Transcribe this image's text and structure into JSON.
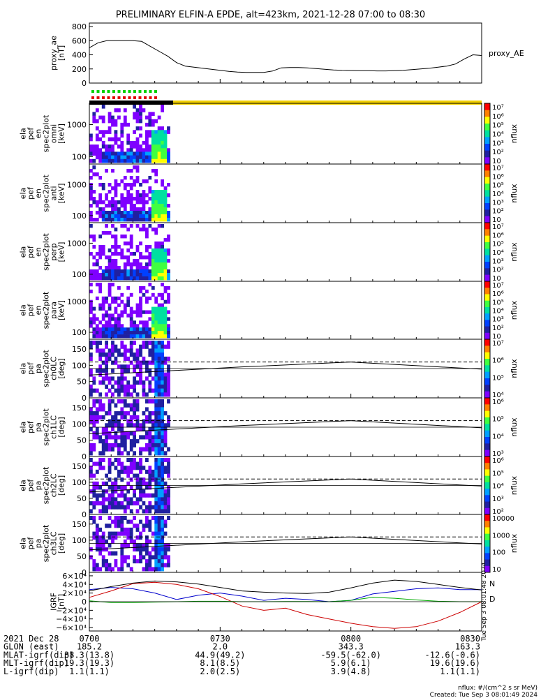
{
  "title": "PRELIMINARY ELFIN-A EPDE, alt=423km, 2021-12-28 07:00 to 08:30",
  "colors": {
    "ae_line": "#000000",
    "bar_black": "#000000",
    "bar_yellow": "#f2d000",
    "flag_green": "#00d000",
    "flag_red": "#e00000",
    "N": "#0000cc",
    "D": "#cc0000",
    "H": "#000000",
    "Z": "#00aa00"
  },
  "time_axis": {
    "start": "07:00",
    "end": "08:30",
    "minutes": 90
  },
  "panels": [
    {
      "id": "ae",
      "ylabel_lines": [
        "proxy_ae",
        "[nT]"
      ],
      "yticks": [
        "800",
        "600",
        "400",
        "200",
        "0"
      ],
      "ytick_values": [
        800,
        600,
        400,
        200,
        0
      ],
      "ylim": [
        0,
        850
      ],
      "legend": "proxy_AE"
    },
    {
      "id": "omni",
      "ylabel_lines": [
        "ela",
        "pef",
        "en",
        "spec2plot",
        "omni",
        "[keV]"
      ],
      "yticks": [
        "1000",
        "100"
      ],
      "cbar_label": "nflux",
      "cbar_ticks": [
        "10⁷",
        "10⁶",
        "10⁵",
        "10⁴",
        "10³",
        "10²",
        "10"
      ]
    },
    {
      "id": "anti",
      "ylabel_lines": [
        "ela",
        "pef",
        "en",
        "spec2plot",
        "anti",
        "[keV]"
      ],
      "yticks": [
        "1000",
        "100"
      ],
      "cbar_label": "nflux",
      "cbar_ticks": [
        "10⁷",
        "10⁶",
        "10⁵",
        "10⁴",
        "10³",
        "10²",
        "10"
      ]
    },
    {
      "id": "perp",
      "ylabel_lines": [
        "ela",
        "pef",
        "en",
        "spec2plot",
        "perp",
        "[keV]"
      ],
      "yticks": [
        "1000",
        "100"
      ],
      "cbar_label": "nflux",
      "cbar_ticks": [
        "10⁷",
        "10⁶",
        "10⁵",
        "10⁴",
        "10³",
        "10²",
        "10"
      ]
    },
    {
      "id": "para",
      "ylabel_lines": [
        "ela",
        "pef",
        "en",
        "spec2plot",
        "para",
        "[keV]"
      ],
      "yticks": [
        "1000",
        "100"
      ],
      "cbar_label": "nflux",
      "cbar_ticks": [
        "10⁷",
        "10⁶",
        "10⁵",
        "10⁴",
        "10³",
        "10²",
        "10"
      ]
    },
    {
      "id": "ch0",
      "ylabel_lines": [
        "ela",
        "pef",
        "pa",
        "spec2plot",
        "ch0LC",
        "[deg]"
      ],
      "yticks": [
        "150",
        "100",
        "50",
        "0"
      ],
      "cbar_label": "nflux",
      "cbar_ticks": [
        "10⁷",
        "10⁶",
        "10⁵",
        "10⁴"
      ]
    },
    {
      "id": "ch1",
      "ylabel_lines": [
        "ela",
        "pef",
        "pa",
        "spec2plot",
        "ch1LC",
        "[deg]"
      ],
      "yticks": [
        "150",
        "100",
        "50",
        "0"
      ],
      "cbar_label": "nflux",
      "cbar_ticks": [
        "10⁶",
        "10⁵",
        "10⁴",
        "10³"
      ]
    },
    {
      "id": "ch2",
      "ylabel_lines": [
        "ela",
        "pef",
        "pa",
        "spec2plot",
        "ch2LC",
        "[deg]"
      ],
      "yticks": [
        "150",
        "100",
        "50",
        "0"
      ],
      "cbar_label": "nflux",
      "cbar_ticks": [
        "10⁶",
        "10⁵",
        "10⁴",
        "10³",
        "10²"
      ]
    },
    {
      "id": "ch3",
      "ylabel_lines": [
        "ela",
        "pef",
        "pa",
        "spec2plot",
        "ch3LC",
        "[deg]"
      ],
      "yticks": [
        "150",
        "100",
        "50",
        "0"
      ],
      "cbar_label": "nflux",
      "cbar_ticks": [
        "10000",
        "1000",
        "100",
        "10"
      ]
    },
    {
      "id": "igrf",
      "ylabel_lines": [
        "IGRF",
        "[nT]"
      ],
      "yticks": [
        "6×10⁴",
        "4×10⁴",
        "2×10⁴",
        "0",
        "−2×10⁴",
        "−4×10⁴",
        "−6×10⁴"
      ],
      "ytick_values": [
        60000,
        40000,
        20000,
        0,
        -20000,
        -40000,
        -60000
      ],
      "ylim": [
        -68000,
        68000
      ],
      "legend": [
        "N",
        "D"
      ],
      "side_note": "Tue Sep 3 08:01:48 2024"
    }
  ],
  "chart_data": {
    "type": "line",
    "series": [
      {
        "name": "proxy_AE",
        "x": [
          0,
          2,
          4,
          6,
          8,
          10,
          12,
          14,
          16,
          18,
          20,
          22,
          24,
          26,
          28,
          30,
          32,
          34,
          36,
          38,
          40,
          42,
          44,
          46,
          48,
          50,
          52,
          54,
          56,
          58,
          60,
          62,
          64,
          66,
          68,
          70,
          72,
          74,
          76,
          78,
          80,
          82,
          84,
          86,
          88,
          90
        ],
        "values": [
          500,
          570,
          600,
          600,
          600,
          600,
          590,
          520,
          450,
          380,
          290,
          240,
          225,
          210,
          195,
          180,
          165,
          155,
          150,
          150,
          150,
          170,
          215,
          220,
          220,
          215,
          205,
          195,
          185,
          180,
          178,
          175,
          175,
          172,
          172,
          175,
          180,
          190,
          200,
          210,
          225,
          240,
          270,
          340,
          400,
          390
        ]
      },
      {
        "name": "N",
        "x": [
          0,
          5,
          10,
          15,
          20,
          25,
          30,
          35,
          40,
          45,
          50,
          55,
          60,
          65,
          70,
          75,
          80,
          85,
          90
        ],
        "values": [
          28000,
          33000,
          30000,
          20000,
          5000,
          15000,
          20000,
          13000,
          3000,
          8000,
          5000,
          0,
          3000,
          18000,
          24000,
          30000,
          32000,
          28000,
          28000
        ]
      },
      {
        "name": "D",
        "x": [
          0,
          5,
          10,
          15,
          20,
          25,
          30,
          35,
          40,
          45,
          50,
          55,
          60,
          65,
          70,
          75,
          80,
          85,
          90
        ],
        "values": [
          10000,
          25000,
          42000,
          45000,
          40000,
          30000,
          12000,
          -10000,
          -20000,
          -15000,
          -30000,
          -40000,
          -50000,
          -58000,
          -62000,
          -58000,
          -45000,
          -25000,
          0
        ]
      },
      {
        "name": "H",
        "x": [
          0,
          5,
          10,
          15,
          20,
          25,
          30,
          35,
          40,
          45,
          50,
          55,
          60,
          65,
          70,
          75,
          80,
          85,
          90
        ],
        "values": [
          25000,
          35000,
          43000,
          48000,
          46000,
          41000,
          33000,
          25000,
          22000,
          20000,
          19000,
          22000,
          32000,
          43000,
          50000,
          47000,
          40000,
          33000,
          27000
        ]
      },
      {
        "name": "Z",
        "x": [
          0,
          5,
          10,
          15,
          20,
          25,
          30,
          35,
          40,
          45,
          50,
          55,
          60,
          65,
          70,
          75,
          80,
          85,
          90
        ],
        "values": [
          2000,
          -2000,
          -2000,
          -1000,
          0,
          1000,
          1000,
          0,
          0,
          500,
          500,
          0,
          3000,
          10000,
          8000,
          4000,
          1000,
          0,
          0
        ]
      }
    ]
  },
  "footer": {
    "rows": [
      {
        "label": "2021 Dec 28",
        "values": [
          "0700",
          "0730",
          "0800",
          "0830"
        ]
      },
      {
        "label": "GLON (east)",
        "values": [
          "185.2",
          "2.0",
          "343.3",
          "163.3"
        ]
      },
      {
        "label": "MLAT-igrf(dip)",
        "values": [
          "38.3(13.8)",
          "44.9(49.2)",
          "-59.5(-62.0)",
          "-12.6(-0.6)"
        ]
      },
      {
        "label": "MLT-igrf(dip)",
        "values": [
          "19.3(19.3)",
          "8.1(8.5)",
          "5.9(6.1)",
          "19.6(19.6)"
        ]
      },
      {
        "label": "L-igrf(dip)",
        "values": [
          "1.1(1.1)",
          "2.0(2.5)",
          "3.9(4.8)",
          "1.1(1.1)"
        ]
      }
    ],
    "units_note": "nflux: #/(cm^2 s sr MeV)",
    "created": "Created: Tue Sep  3 08:01:49 2024"
  }
}
